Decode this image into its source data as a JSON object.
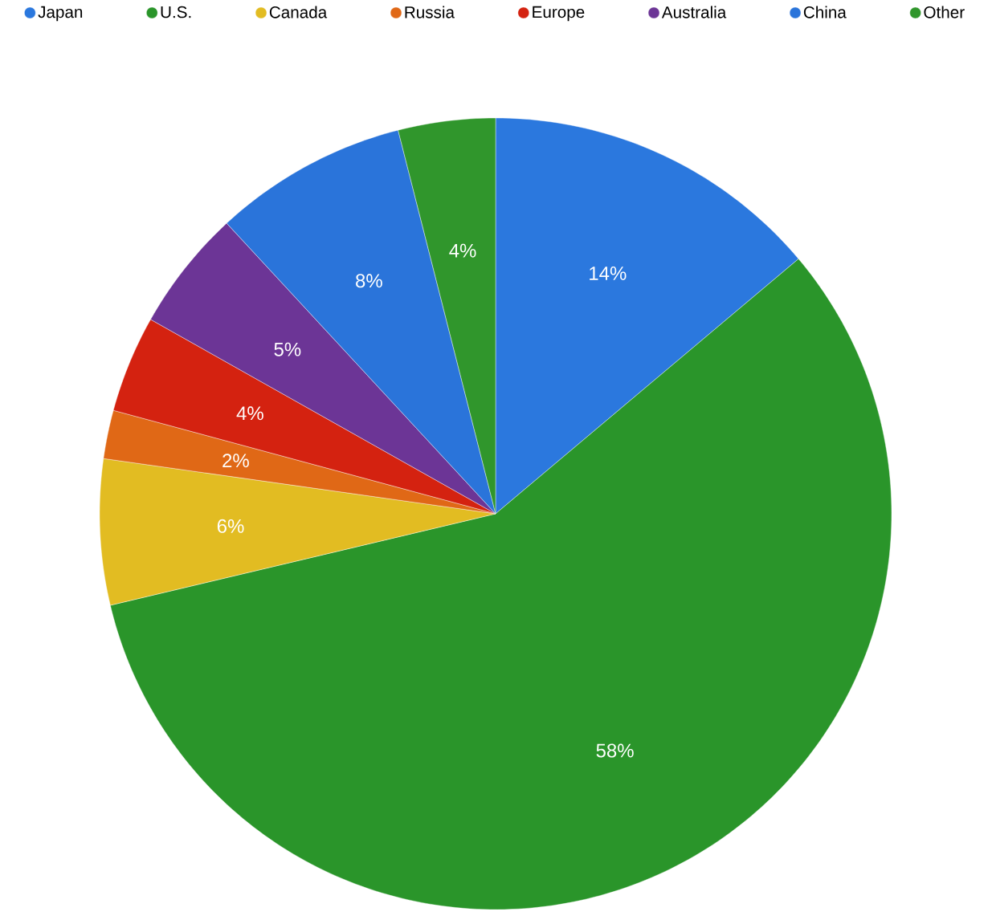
{
  "chart_data": {
    "type": "pie",
    "categories": [
      "Japan",
      "U.S.",
      "Canada",
      "Russia",
      "Europe",
      "Australia",
      "China",
      "Other"
    ],
    "values": [
      14,
      58,
      6,
      2,
      4,
      5,
      8,
      4
    ],
    "colors": [
      "#2b78de",
      "#2a952a",
      "#e2bc22",
      "#e06816",
      "#d42210",
      "#6c3596",
      "#2a74da",
      "#30962c"
    ],
    "value_labels": [
      "14%",
      "58%",
      "6%",
      "2%",
      "4%",
      "5%",
      "8%",
      "4%"
    ],
    "legend": "top"
  }
}
